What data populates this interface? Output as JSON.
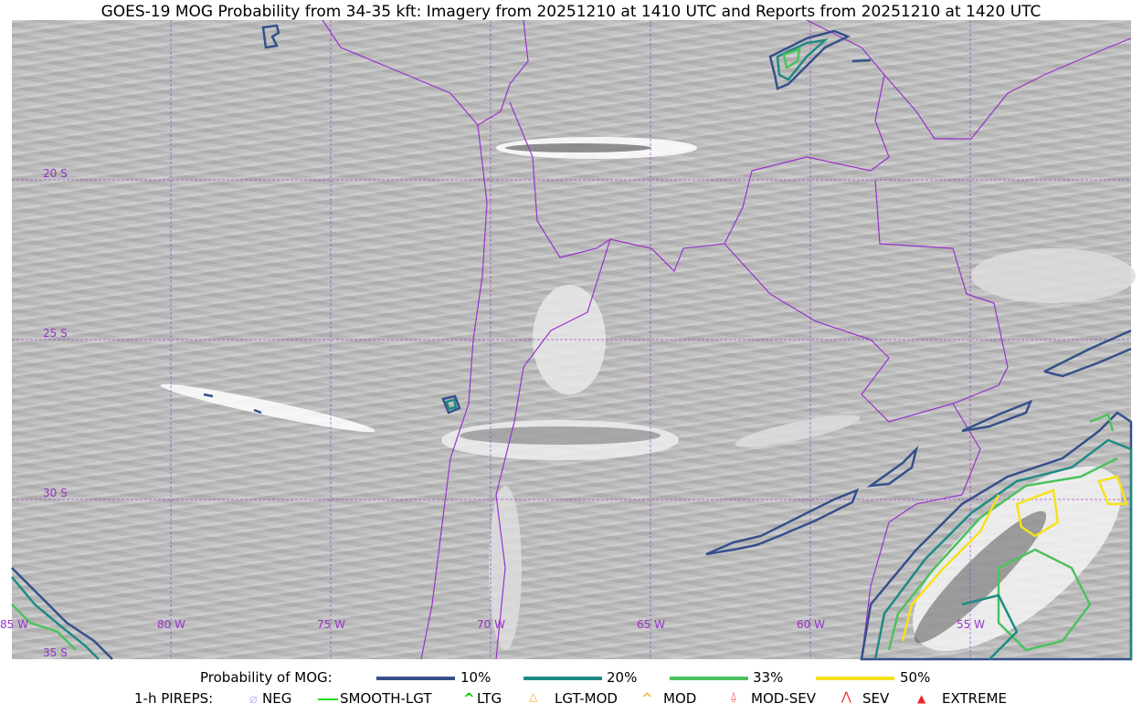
{
  "title": "GOES-19 MOG Probability from 34-35 kft: Imagery from 20251210 at 1410 UTC and Reports from 20251210 at 1420 UTC",
  "map": {
    "lat_labels": [
      "20 S",
      "25 S",
      "30 S",
      "35 S"
    ],
    "lon_labels": [
      "85 W",
      "80 W",
      "75 W",
      "70 W",
      "65 W",
      "60 W",
      "55 W"
    ],
    "grid_color": "#9933cc",
    "border_color": "#9933cc"
  },
  "legend": {
    "probability_label": "Probability of MOG:",
    "probability": [
      {
        "label": "10%",
        "color": "#35508a"
      },
      {
        "label": "20%",
        "color": "#1f8a84"
      },
      {
        "label": "33%",
        "color": "#4cc25e"
      },
      {
        "label": "50%",
        "color": "#f6e11c"
      }
    ],
    "pireps_label": "1-h PIREPS:",
    "pireps": [
      {
        "label": "NEG",
        "color": "#c0c0f0",
        "icon": "neg-icon"
      },
      {
        "label": "SMOOTH-LGT",
        "color": "#22dd22",
        "icon": "line-icon"
      },
      {
        "label": "LTG",
        "color": "#00cc00",
        "icon": "caret-icon"
      },
      {
        "label": "LGT-MOD",
        "color": "#f5a623",
        "icon": "caret-bar-icon"
      },
      {
        "label": "MOD",
        "color": "#f5a623",
        "icon": "caret-icon"
      },
      {
        "label": "MOD-SEV",
        "color": "#ee2222",
        "icon": "double-caret-bar-icon"
      },
      {
        "label": "SEV",
        "color": "#ee2222",
        "icon": "double-caret-icon"
      },
      {
        "label": "EXTREME",
        "color": "#ee2222",
        "icon": "filled-triangle-icon"
      }
    ]
  }
}
